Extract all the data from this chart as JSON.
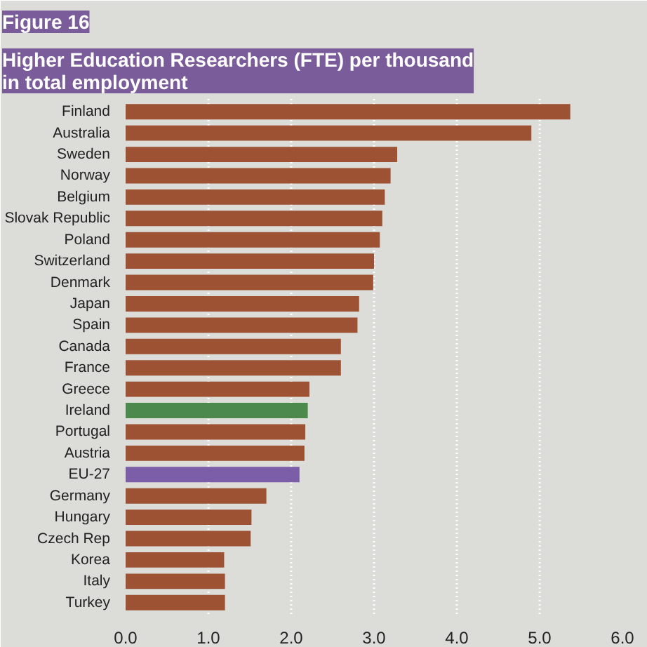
{
  "chart_data": {
    "type": "bar",
    "orientation": "horizontal",
    "title": "Higher Education Researchers (FTE) per thousand\nin total employment",
    "annotations": [
      "Figure 16"
    ],
    "categories": [
      "Finland",
      "Australia",
      "Sweden",
      "Norway",
      "Belgium",
      "Slovak Republic",
      "Poland",
      "Switzerland",
      "Denmark",
      "Japan",
      "Spain",
      "Canada",
      "France",
      "Greece",
      "Ireland",
      "Portugal",
      "Austria",
      "EU-27",
      "Germany",
      "Hungary",
      "Czech Rep",
      "Korea",
      "Italy",
      "Turkey"
    ],
    "values": [
      5.37,
      4.9,
      3.28,
      3.2,
      3.13,
      3.1,
      3.07,
      3.0,
      2.99,
      2.82,
      2.8,
      2.6,
      2.6,
      2.22,
      2.2,
      2.17,
      2.16,
      2.1,
      1.7,
      1.52,
      1.51,
      1.19,
      1.2,
      1.2
    ],
    "colors": [
      "#9c5233",
      "#9c5233",
      "#9c5233",
      "#9c5233",
      "#9c5233",
      "#9c5233",
      "#9c5233",
      "#9c5233",
      "#9c5233",
      "#9c5233",
      "#9c5233",
      "#9c5233",
      "#9c5233",
      "#9c5233",
      "#4b8a4c",
      "#9c5233",
      "#9c5233",
      "#7b5ea7",
      "#9c5233",
      "#9c5233",
      "#9c5233",
      "#9c5233",
      "#9c5233",
      "#9c5233"
    ],
    "xlim": [
      0,
      6
    ],
    "xticks": [
      {
        "value": 0,
        "label": "0.0"
      },
      {
        "value": 1,
        "label": "1.0"
      },
      {
        "value": 2,
        "label": "2.0"
      },
      {
        "value": 3,
        "label": "3.0"
      },
      {
        "value": 4,
        "label": "4.0"
      },
      {
        "value": 5,
        "label": "5.0"
      },
      {
        "value": 6,
        "label": "6.0"
      }
    ],
    "grid": "x"
  }
}
